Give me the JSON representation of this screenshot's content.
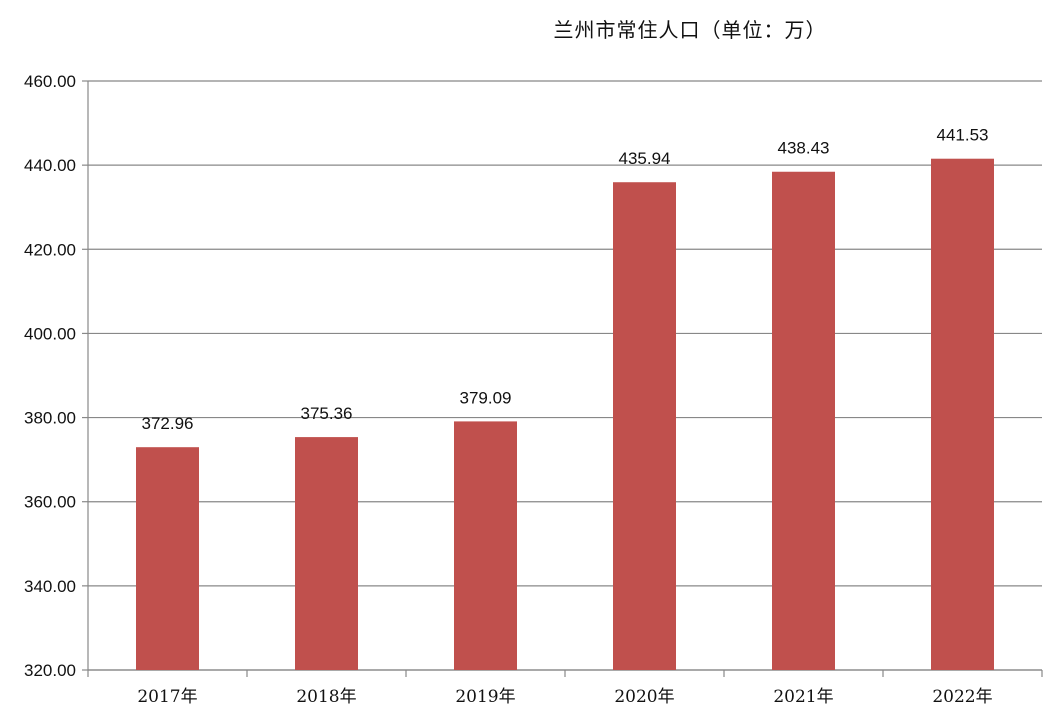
{
  "chart_data": {
    "type": "bar",
    "title": "兰州市常住人口（单位：万）",
    "categories": [
      "2017年",
      "2018年",
      "2019年",
      "2020年",
      "2021年",
      "2022年"
    ],
    "values": [
      372.96,
      375.36,
      379.09,
      435.94,
      438.43,
      441.53
    ],
    "data_labels": [
      "372.96",
      "375.36",
      "379.09",
      "435.94",
      "438.43",
      "441.53"
    ],
    "ylim": [
      320,
      460
    ],
    "yticks": [
      "320.00",
      "340.00",
      "360.00",
      "380.00",
      "400.00",
      "420.00",
      "440.00",
      "460.00"
    ],
    "xlabel": "",
    "ylabel": "",
    "grid": "horizontal",
    "legend": "none",
    "bar_color": "#c0504d",
    "grid_color": "#888888",
    "axis_color": "#888888"
  }
}
